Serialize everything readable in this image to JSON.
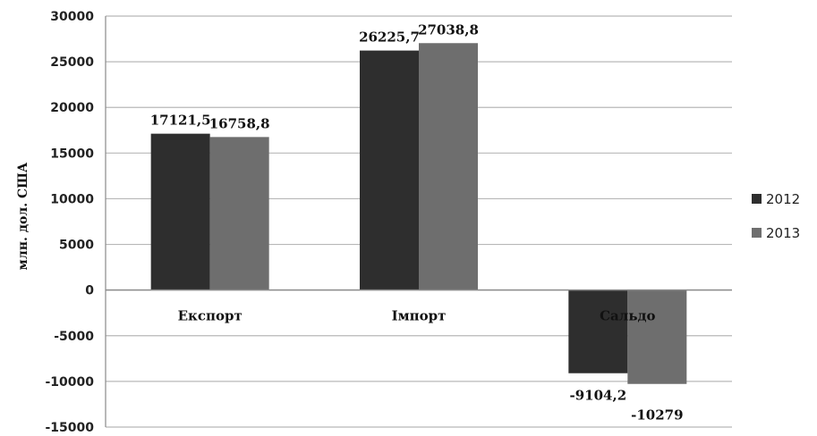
{
  "chart_data": {
    "type": "bar",
    "categories": [
      "Експорт",
      "Імпорт",
      "Сальдо"
    ],
    "series": [
      {
        "name": "2012",
        "values": [
          17121.5,
          26225.7,
          -9104.2
        ],
        "labels": [
          "17121,5",
          "26225,7",
          "-9104,2"
        ],
        "color": "#2e2e2e"
      },
      {
        "name": "2013",
        "values": [
          16758.8,
          27038.8,
          -10279
        ],
        "labels": [
          "16758,8",
          "27038,8",
          "-10279"
        ],
        "color": "#6e6e6e"
      }
    ],
    "ylabel": "млн. дол. США",
    "ylim": [
      -15000,
      30000
    ],
    "yticks": [
      30000,
      25000,
      20000,
      15000,
      10000,
      5000,
      0,
      -5000,
      -10000,
      -15000
    ],
    "grid": true,
    "legend": "right"
  }
}
